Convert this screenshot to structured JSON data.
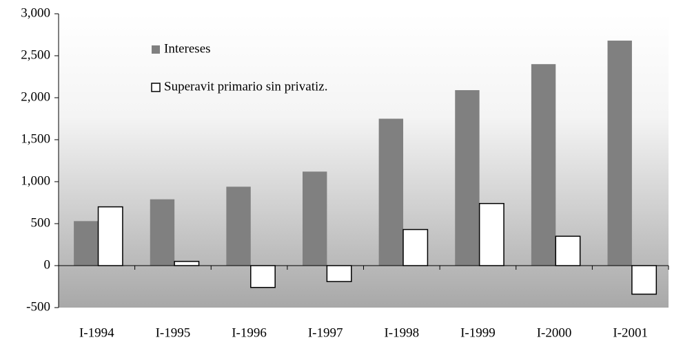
{
  "chart_data": {
    "type": "bar",
    "categories": [
      "I-1994",
      "I-1995",
      "I-1996",
      "I-1997",
      "I-1998",
      "I-1999",
      "I-2000",
      "I-2001"
    ],
    "series": [
      {
        "name": "Intereses",
        "color": "#808080",
        "values": [
          530,
          790,
          940,
          1120,
          1750,
          2090,
          2400,
          2680
        ]
      },
      {
        "name": "Superavit primario sin privatiz.",
        "color": "#ffffff",
        "values": [
          700,
          50,
          -260,
          -190,
          430,
          740,
          350,
          -340
        ]
      }
    ],
    "ylim": [
      -500,
      3000
    ],
    "yticks": [
      -500,
      0,
      500,
      {
        "value": 1000,
        "label": "1,000"
      },
      {
        "value": 1500,
        "label": "1,500"
      },
      {
        "value": 2000,
        "label": "2,000"
      },
      {
        "value": 2500,
        "label": "2,500"
      },
      {
        "value": 3000,
        "label": "3,000"
      }
    ]
  }
}
